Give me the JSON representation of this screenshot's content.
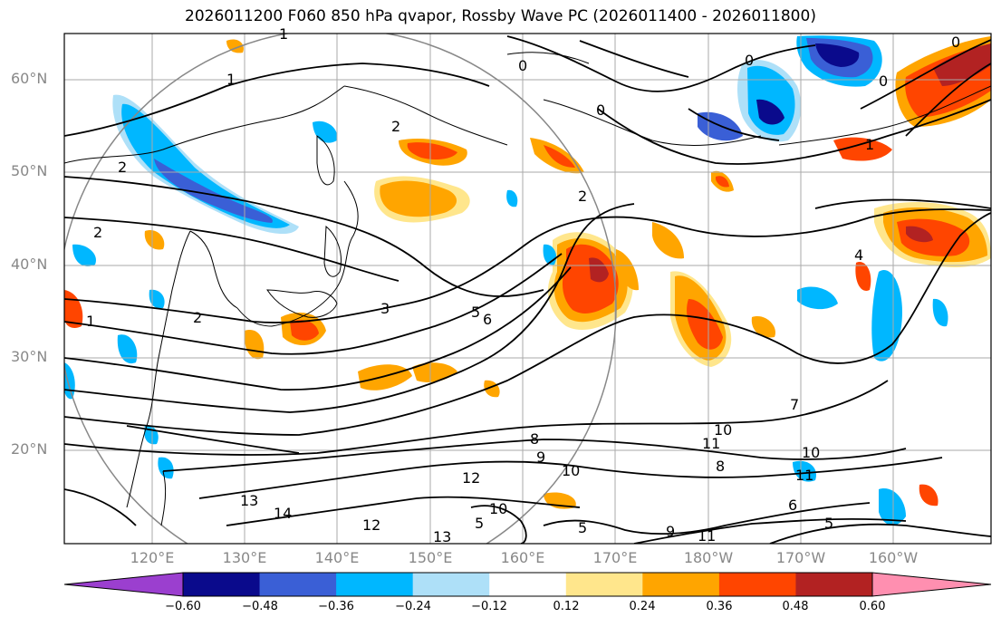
{
  "title": "2026011200 F060 850 hPa qvapor, Rossby Wave PC (2026011400 - 2026011800)",
  "lat_labels": [
    "60°N",
    "50°N",
    "40°N",
    "30°N",
    "20°N"
  ],
  "lon_labels": [
    "120°E",
    "130°E",
    "140°E",
    "150°E",
    "160°E",
    "170°E",
    "180°W",
    "170°W",
    "160°W"
  ],
  "colorbar": {
    "colors": [
      "#9b3fcf",
      "#0a0a8c",
      "#3a5fd6",
      "#00b7ff",
      "#aee0f8",
      "#ffffff",
      "#ffe68c",
      "#ffa500",
      "#ff4500",
      "#b22222",
      "#ff8fb0"
    ],
    "ticks": [
      "−0.60",
      "−0.48",
      "−0.36",
      "−0.24",
      "−0.12",
      "0.12",
      "0.24",
      "0.36",
      "0.48",
      "0.60"
    ]
  },
  "contour_labels": [
    "1",
    "1",
    "1",
    "1",
    "0",
    "0",
    "0",
    "0",
    "0",
    "2",
    "2",
    "2",
    "2",
    "2",
    "3",
    "4",
    "5",
    "6",
    "7",
    "8",
    "8",
    "9",
    "9",
    "10",
    "10",
    "10",
    "10",
    "11",
    "11",
    "11",
    "12",
    "12",
    "13",
    "13",
    "14",
    "5",
    "6",
    "5",
    "5"
  ]
}
